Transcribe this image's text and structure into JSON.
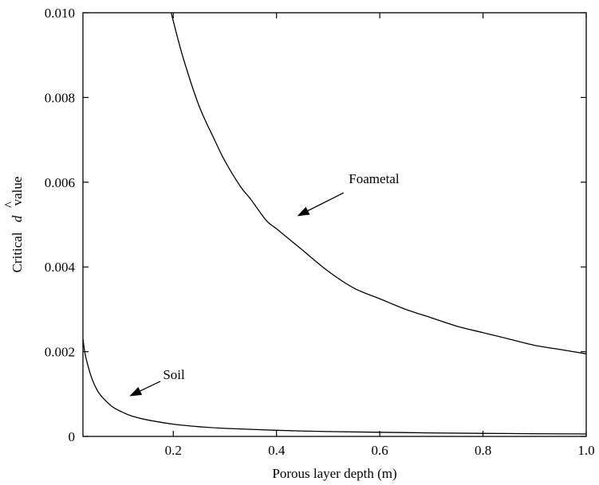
{
  "chart_data": {
    "type": "line",
    "xlabel": "Porous layer depth (m)",
    "ylabel_prefix": "Critical",
    "ylabel_var": "d",
    "ylabel_hat": "^",
    "ylabel_suffix": "value",
    "xlim": [
      0.025,
      1.0
    ],
    "ylim": [
      0,
      0.01
    ],
    "xticks": [
      0.2,
      0.4,
      0.6,
      0.8,
      1.0
    ],
    "xtick_labels": [
      "0.2",
      "0.4",
      "0.6",
      "0.8",
      "1.0"
    ],
    "yticks": [
      0,
      0.002,
      0.004,
      0.006,
      0.008,
      0.01
    ],
    "ytick_labels": [
      "0",
      "0.002",
      "0.004",
      "0.006",
      "0.008",
      "0.010"
    ],
    "grid": false,
    "series": [
      {
        "name": "Foametal",
        "x": [
          0.19,
          0.2,
          0.22,
          0.25,
          0.28,
          0.3,
          0.33,
          0.35,
          0.38,
          0.4,
          0.45,
          0.5,
          0.55,
          0.6,
          0.65,
          0.7,
          0.75,
          0.8,
          0.85,
          0.9,
          0.95,
          1.0
        ],
        "y": [
          0.0103,
          0.0098,
          0.0089,
          0.0078,
          0.007,
          0.0065,
          0.0059,
          0.0056,
          0.0051,
          0.0049,
          0.0044,
          0.0039,
          0.0035,
          0.00325,
          0.003,
          0.0028,
          0.0026,
          0.00245,
          0.0023,
          0.00215,
          0.00205,
          0.00195
        ]
      },
      {
        "name": "Soil",
        "x": [
          0.025,
          0.03,
          0.04,
          0.05,
          0.06,
          0.08,
          0.1,
          0.12,
          0.15,
          0.2,
          0.25,
          0.3,
          0.4,
          0.5,
          0.6,
          0.7,
          0.8,
          0.9,
          1.0
        ],
        "y": [
          0.0023,
          0.0019,
          0.00145,
          0.00115,
          0.00096,
          0.00072,
          0.00058,
          0.00048,
          0.00039,
          0.00029,
          0.00023,
          0.00019,
          0.000145,
          0.000115,
          9.7e-05,
          8.3e-05,
          7.2e-05,
          6.4e-05,
          5.8e-05
        ]
      }
    ],
    "annotations": [
      {
        "text": "Foametal",
        "text_x": 0.54,
        "text_y": 0.00598,
        "arrow_from": [
          0.53,
          0.00575
        ],
        "arrow_to": [
          0.44,
          0.0052
        ]
      },
      {
        "text": "Soil",
        "text_x": 0.18,
        "text_y": 0.00135,
        "arrow_from": [
          0.175,
          0.0013
        ],
        "arrow_to": [
          0.115,
          0.00095
        ]
      }
    ]
  }
}
